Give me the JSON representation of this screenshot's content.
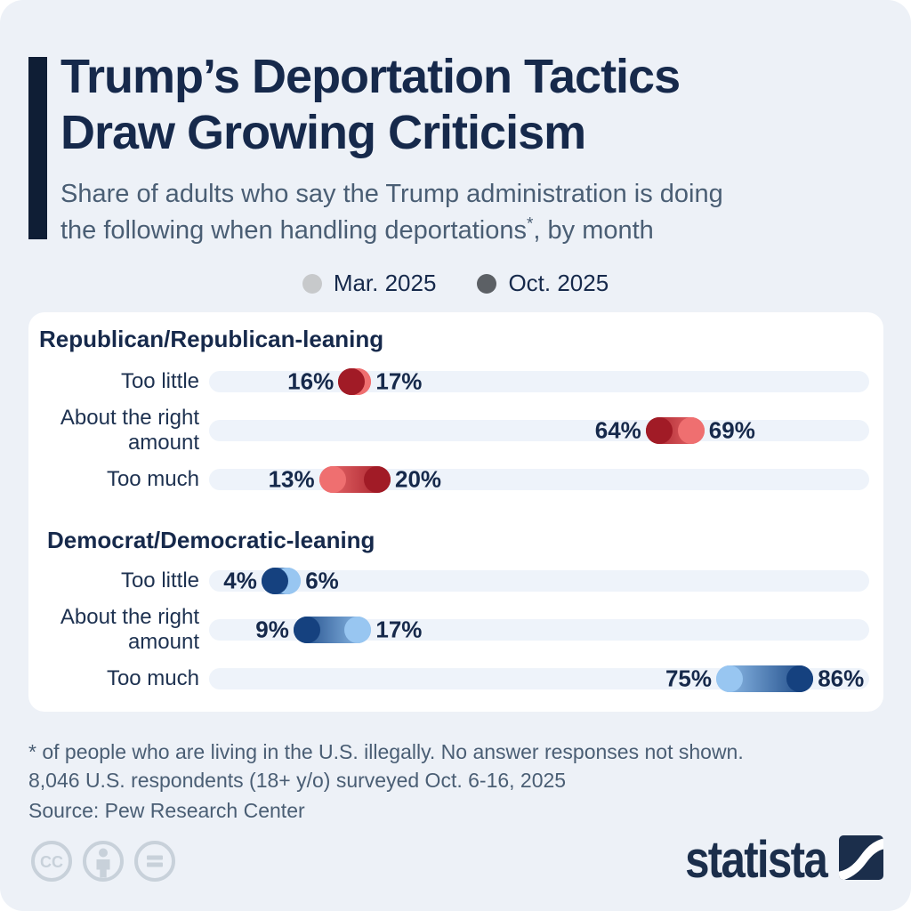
{
  "header": {
    "title_line1": "Trump’s Deportation Tactics",
    "title_line2": "Draw Growing Criticism",
    "subtitle_line1": "Share of adults who say the Trump administration is doing",
    "subtitle_line2_pre": "the following when handling deportations",
    "subtitle_sup": "*",
    "subtitle_line2_post": ", by month"
  },
  "legend": {
    "mar": {
      "label": "Mar. 2025",
      "color": "#c7c9cb"
    },
    "oct": {
      "label": "Oct. 2025",
      "color": "#5c6065"
    }
  },
  "chart_data": {
    "type": "scatter",
    "variant": "dumbbell-dot-plot",
    "unit": "%",
    "xlim": [
      0,
      100
    ],
    "grid": false,
    "legend_position": "top-center",
    "series_labels": [
      "Mar. 2025",
      "Oct. 2025"
    ],
    "groups": [
      {
        "name": "Republican/Republican-leaning",
        "colors": {
          "mar": "#ef6f70",
          "oct": "#a11b26"
        },
        "rows": [
          {
            "label": "Too little",
            "mar": 17,
            "oct": 16
          },
          {
            "label": "About the right amount",
            "mar": 69,
            "oct": 64
          },
          {
            "label": "Too much",
            "mar": 13,
            "oct": 20
          }
        ]
      },
      {
        "name": "Democrat/Democratic-leaning",
        "colors": {
          "mar": "#98c6f1",
          "oct": "#15417f"
        },
        "rows": [
          {
            "label": "Too little",
            "mar": 6,
            "oct": 4
          },
          {
            "label": "About the right amount",
            "mar": 17,
            "oct": 9
          },
          {
            "label": "Too much",
            "mar": 75,
            "oct": 86
          }
        ]
      }
    ]
  },
  "footnotes": {
    "line1": "* of people who are living in the U.S. illegally. No answer responses not shown.",
    "line2": "8,046 U.S. respondents (18+ y/o) surveyed Oct. 6-16, 2025"
  },
  "source": "Source: Pew Research Center",
  "footer": {
    "brand": "statista",
    "brand_color": "#1b2e4b",
    "license_icon_names": [
      "cc-icon",
      "attribution-person-icon",
      "no-derivatives-equals-icon"
    ]
  }
}
